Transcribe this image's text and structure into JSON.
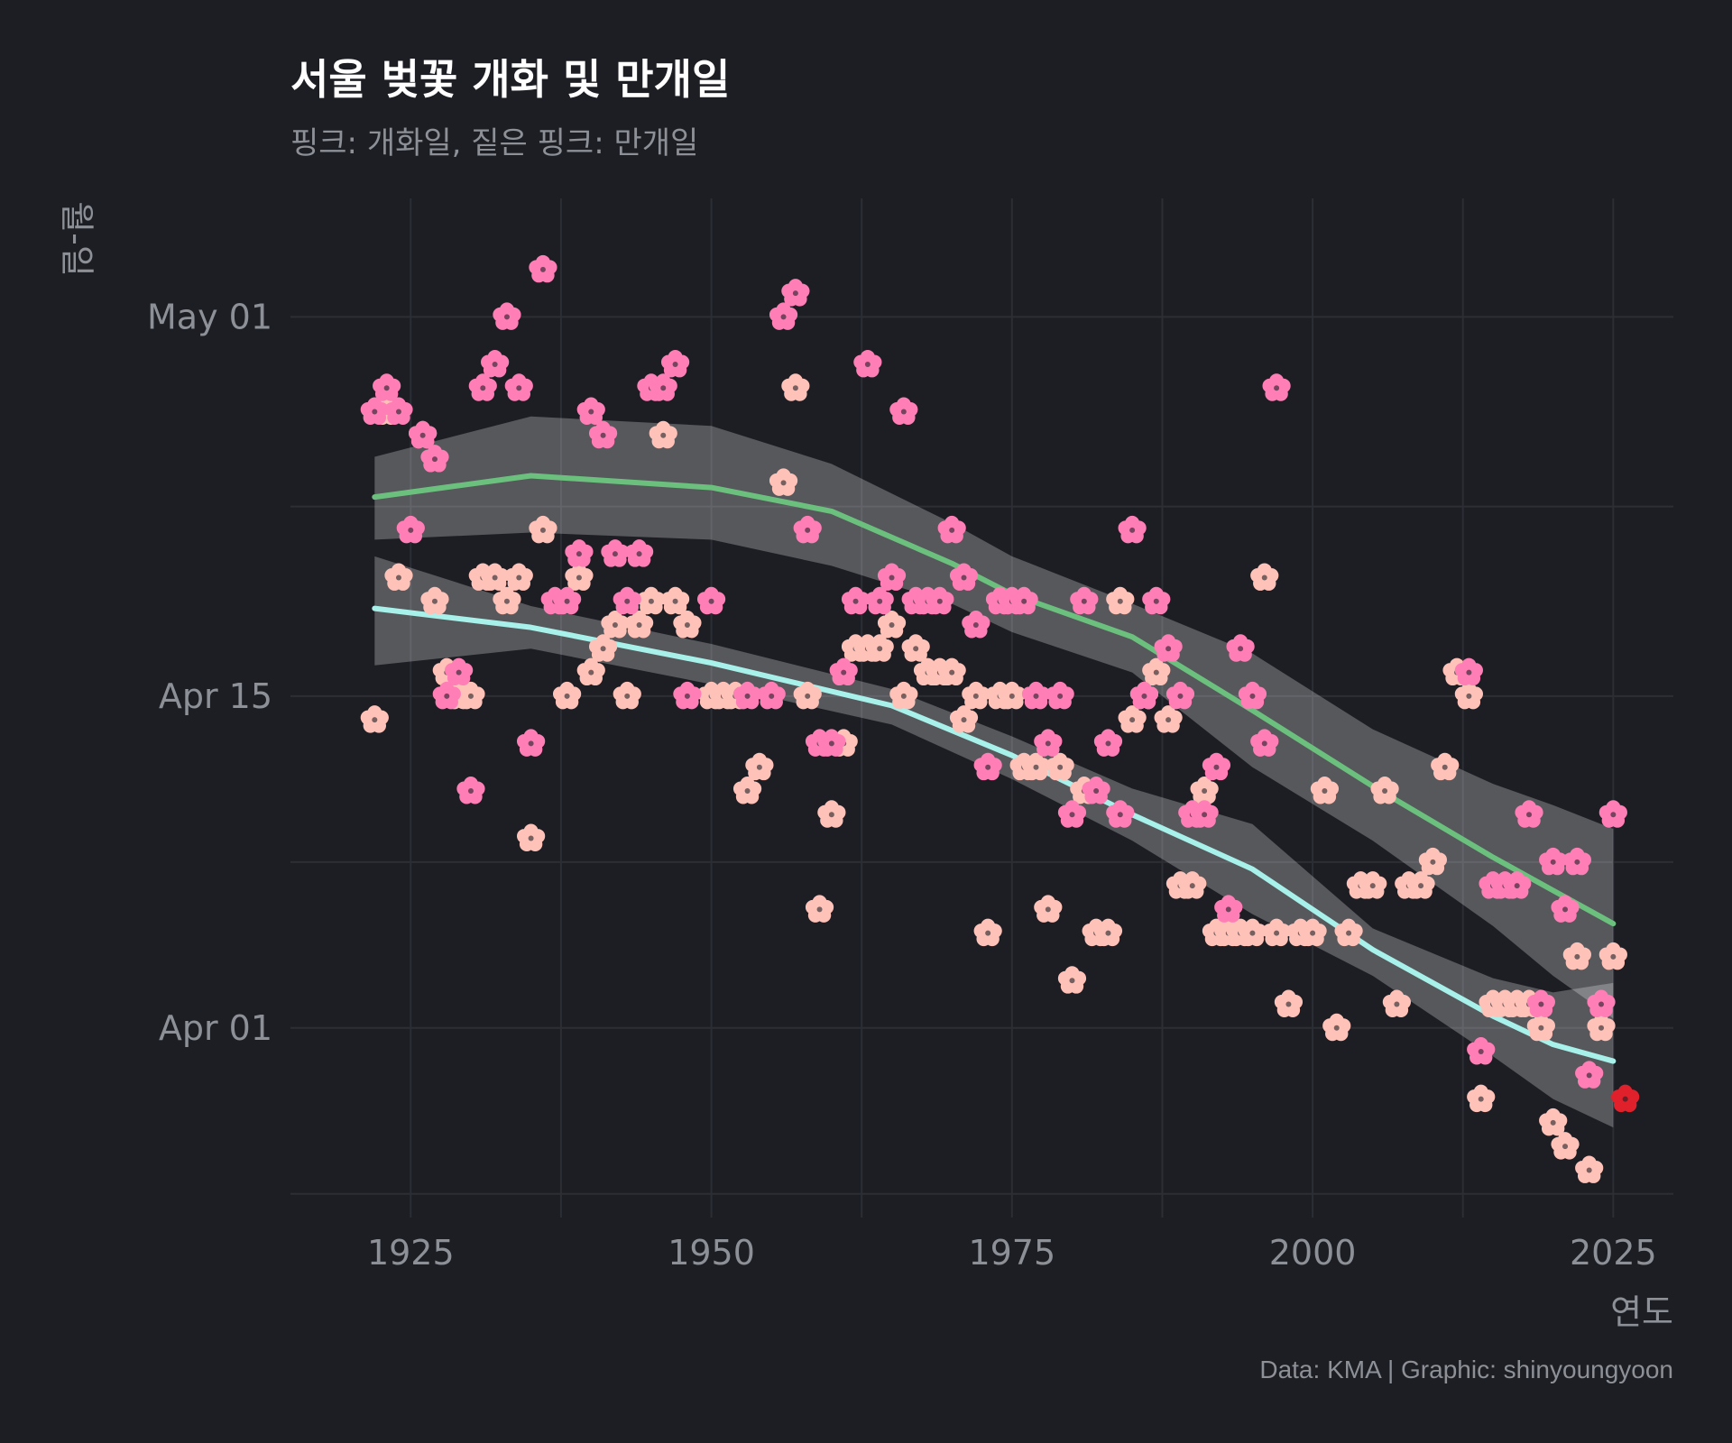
{
  "chart_data": {
    "type": "scatter",
    "title": "서울 벚꽃 개화 및 만개일",
    "subtitle": "핑크: 개화일, 짙은 핑크: 만개일",
    "xlabel": "연도",
    "ylabel": "월-일",
    "caption": "Data: KMA | Graphic: shinyoungyoon",
    "xlim": [
      1915,
      2030
    ],
    "ylim": [
      83,
      126
    ],
    "x_ticks": [
      1925,
      1950,
      1975,
      2000,
      2025
    ],
    "x_tick_labels": [
      "1925",
      "1950",
      "1975",
      "2000",
      "2025"
    ],
    "y_ticks": [
      91,
      105,
      121
    ],
    "y_tick_labels": [
      "Apr 01",
      "Apr 15",
      "May 01"
    ],
    "y_units": "day of year (Apr 01 = 91)",
    "colors": {
      "background": "#1c1e24",
      "flowering": "#ffc2b8",
      "full_bloom": "#ff7eb6",
      "highlight": "#e0202a",
      "flowering_trend": "#a8f0ea",
      "full_bloom_trend": "#6cc07e",
      "ribbon": "#ffffff"
    },
    "series": [
      {
        "name": "개화일",
        "marker": "blossom",
        "color": "#ffc2b8",
        "points": [
          [
            1922,
            104
          ],
          [
            1923,
            117
          ],
          [
            1924,
            110
          ],
          [
            1926,
            116
          ],
          [
            1927,
            109
          ],
          [
            1928,
            106
          ],
          [
            1929,
            105
          ],
          [
            1930,
            105
          ],
          [
            1931,
            110
          ],
          [
            1932,
            110
          ],
          [
            1933,
            109
          ],
          [
            1934,
            110
          ],
          [
            1935,
            99
          ],
          [
            1936,
            112
          ],
          [
            1938,
            105
          ],
          [
            1939,
            110
          ],
          [
            1940,
            106
          ],
          [
            1941,
            107
          ],
          [
            1942,
            108
          ],
          [
            1943,
            105
          ],
          [
            1944,
            108
          ],
          [
            1945,
            109
          ],
          [
            1946,
            116
          ],
          [
            1947,
            109
          ],
          [
            1948,
            108
          ],
          [
            1950,
            105
          ],
          [
            1951,
            105
          ],
          [
            1952,
            105
          ],
          [
            1953,
            101
          ],
          [
            1954,
            102
          ],
          [
            1956,
            114
          ],
          [
            1957,
            118
          ],
          [
            1958,
            105
          ],
          [
            1959,
            96
          ],
          [
            1960,
            100
          ],
          [
            1961,
            103
          ],
          [
            1962,
            107
          ],
          [
            1963,
            107
          ],
          [
            1964,
            107
          ],
          [
            1965,
            108
          ],
          [
            1966,
            105
          ],
          [
            1967,
            107
          ],
          [
            1968,
            106
          ],
          [
            1969,
            106
          ],
          [
            1970,
            106
          ],
          [
            1971,
            104
          ],
          [
            1972,
            105
          ],
          [
            1973,
            95
          ],
          [
            1974,
            105
          ],
          [
            1975,
            105
          ],
          [
            1976,
            102
          ],
          [
            1977,
            102
          ],
          [
            1978,
            96
          ],
          [
            1979,
            102
          ],
          [
            1980,
            93
          ],
          [
            1981,
            101
          ],
          [
            1982,
            95
          ],
          [
            1983,
            95
          ],
          [
            1984,
            109
          ],
          [
            1985,
            104
          ],
          [
            1986,
            105
          ],
          [
            1987,
            106
          ],
          [
            1988,
            104
          ],
          [
            1989,
            97
          ],
          [
            1990,
            97
          ],
          [
            1991,
            101
          ],
          [
            1992,
            95
          ],
          [
            1993,
            95
          ],
          [
            1994,
            95
          ],
          [
            1995,
            95
          ],
          [
            1996,
            110
          ],
          [
            1997,
            95
          ],
          [
            1998,
            92
          ],
          [
            1999,
            95
          ],
          [
            2000,
            95
          ],
          [
            2001,
            101
          ],
          [
            2002,
            91
          ],
          [
            2003,
            95
          ],
          [
            2004,
            97
          ],
          [
            2005,
            97
          ],
          [
            2006,
            101
          ],
          [
            2007,
            92
          ],
          [
            2008,
            97
          ],
          [
            2009,
            97
          ],
          [
            2010,
            98
          ],
          [
            2011,
            102
          ],
          [
            2012,
            106
          ],
          [
            2013,
            105
          ],
          [
            2014,
            88
          ],
          [
            2015,
            92
          ],
          [
            2016,
            92
          ],
          [
            2017,
            92
          ],
          [
            2018,
            92
          ],
          [
            2019,
            91
          ],
          [
            2020,
            87
          ],
          [
            2021,
            86
          ],
          [
            2022,
            94
          ],
          [
            2023,
            85
          ],
          [
            2024,
            91
          ],
          [
            2025,
            94
          ]
        ]
      },
      {
        "name": "만개일",
        "marker": "blossom",
        "color": "#ff7eb6",
        "points": [
          [
            1922,
            117
          ],
          [
            1923,
            118
          ],
          [
            1924,
            117
          ],
          [
            1925,
            112
          ],
          [
            1926,
            116
          ],
          [
            1927,
            115
          ],
          [
            1928,
            105
          ],
          [
            1929,
            106
          ],
          [
            1930,
            101
          ],
          [
            1931,
            118
          ],
          [
            1932,
            119
          ],
          [
            1933,
            121
          ],
          [
            1934,
            118
          ],
          [
            1935,
            103
          ],
          [
            1936,
            123
          ],
          [
            1937,
            109
          ],
          [
            1938,
            109
          ],
          [
            1939,
            111
          ],
          [
            1940,
            117
          ],
          [
            1941,
            116
          ],
          [
            1942,
            111
          ],
          [
            1943,
            109
          ],
          [
            1944,
            111
          ],
          [
            1945,
            118
          ],
          [
            1946,
            118
          ],
          [
            1947,
            119
          ],
          [
            1948,
            105
          ],
          [
            1950,
            109
          ],
          [
            1953,
            105
          ],
          [
            1955,
            105
          ],
          [
            1956,
            121
          ],
          [
            1957,
            122
          ],
          [
            1958,
            112
          ],
          [
            1959,
            103
          ],
          [
            1960,
            103
          ],
          [
            1961,
            106
          ],
          [
            1962,
            109
          ],
          [
            1963,
            119
          ],
          [
            1964,
            109
          ],
          [
            1965,
            110
          ],
          [
            1966,
            117
          ],
          [
            1967,
            109
          ],
          [
            1968,
            109
          ],
          [
            1969,
            109
          ],
          [
            1970,
            112
          ],
          [
            1971,
            110
          ],
          [
            1972,
            108
          ],
          [
            1973,
            102
          ],
          [
            1974,
            109
          ],
          [
            1975,
            109
          ],
          [
            1976,
            109
          ],
          [
            1977,
            105
          ],
          [
            1978,
            103
          ],
          [
            1979,
            105
          ],
          [
            1980,
            100
          ],
          [
            1981,
            109
          ],
          [
            1982,
            101
          ],
          [
            1983,
            103
          ],
          [
            1984,
            100
          ],
          [
            1985,
            112
          ],
          [
            1986,
            105
          ],
          [
            1987,
            109
          ],
          [
            1988,
            107
          ],
          [
            1989,
            105
          ],
          [
            1990,
            100
          ],
          [
            1991,
            100
          ],
          [
            1992,
            102
          ],
          [
            1993,
            96
          ],
          [
            1994,
            107
          ],
          [
            1995,
            105
          ],
          [
            1996,
            103
          ],
          [
            1997,
            118
          ],
          [
            2013,
            106
          ],
          [
            2014,
            90
          ],
          [
            2015,
            97
          ],
          [
            2016,
            97
          ],
          [
            2017,
            97
          ],
          [
            2018,
            100
          ],
          [
            2019,
            92
          ],
          [
            2020,
            98
          ],
          [
            2021,
            96
          ],
          [
            2022,
            98
          ],
          [
            2023,
            89
          ],
          [
            2024,
            92
          ],
          [
            2025,
            100
          ]
        ]
      }
    ],
    "highlight_point": {
      "series": "만개일",
      "x": 2026,
      "y": 88
    },
    "trends": [
      {
        "name": "개화일 추세",
        "color": "#a8f0ea",
        "curve": [
          [
            1922,
            108.7
          ],
          [
            1935,
            107.9
          ],
          [
            1950,
            106.4
          ],
          [
            1965,
            104.6
          ],
          [
            1975,
            102.5
          ],
          [
            1985,
            100.0
          ],
          [
            1995,
            97.7
          ],
          [
            2005,
            94.3
          ],
          [
            2015,
            91.5
          ],
          [
            2020,
            90.3
          ],
          [
            2025,
            89.6
          ]
        ],
        "ci_upper": [
          [
            1922,
            110.9
          ],
          [
            1935,
            108.8
          ],
          [
            1950,
            107.2
          ],
          [
            1965,
            105.3
          ],
          [
            1975,
            103.3
          ],
          [
            1985,
            101.1
          ],
          [
            1995,
            99.6
          ],
          [
            2005,
            95.2
          ],
          [
            2015,
            93.1
          ],
          [
            2020,
            92.5
          ],
          [
            2025,
            92.9
          ]
        ],
        "ci_lower": [
          [
            1922,
            106.3
          ],
          [
            1935,
            107.0
          ],
          [
            1950,
            105.5
          ],
          [
            1965,
            103.8
          ],
          [
            1975,
            101.5
          ],
          [
            1985,
            98.9
          ],
          [
            1995,
            95.8
          ],
          [
            2005,
            93.2
          ],
          [
            2015,
            89.8
          ],
          [
            2020,
            88.0
          ],
          [
            2025,
            86.8
          ]
        ]
      },
      {
        "name": "만개일 추세",
        "color": "#6cc07e",
        "curve": [
          [
            1922,
            113.4
          ],
          [
            1935,
            114.3
          ],
          [
            1950,
            113.8
          ],
          [
            1960,
            112.8
          ],
          [
            1970,
            110.6
          ],
          [
            1975,
            109.3
          ],
          [
            1985,
            107.5
          ],
          [
            1995,
            104.4
          ],
          [
            2005,
            101.2
          ],
          [
            2015,
            98.2
          ],
          [
            2020,
            96.8
          ],
          [
            2025,
            95.4
          ]
        ],
        "ci_upper": [
          [
            1922,
            115.1
          ],
          [
            1935,
            116.8
          ],
          [
            1950,
            116.4
          ],
          [
            1960,
            114.8
          ],
          [
            1970,
            112.3
          ],
          [
            1975,
            110.9
          ],
          [
            1985,
            108.9
          ],
          [
            1995,
            106.8
          ],
          [
            2005,
            103.6
          ],
          [
            2015,
            101.3
          ],
          [
            2020,
            100.4
          ],
          [
            2025,
            99.4
          ]
        ],
        "ci_lower": [
          [
            1922,
            111.6
          ],
          [
            1935,
            111.9
          ],
          [
            1950,
            111.6
          ],
          [
            1960,
            110.5
          ],
          [
            1970,
            108.9
          ],
          [
            1975,
            107.7
          ],
          [
            1985,
            106.0
          ],
          [
            1995,
            102.0
          ],
          [
            2005,
            98.9
          ],
          [
            2015,
            95.3
          ],
          [
            2020,
            93.2
          ],
          [
            2025,
            91.4
          ]
        ]
      }
    ]
  }
}
